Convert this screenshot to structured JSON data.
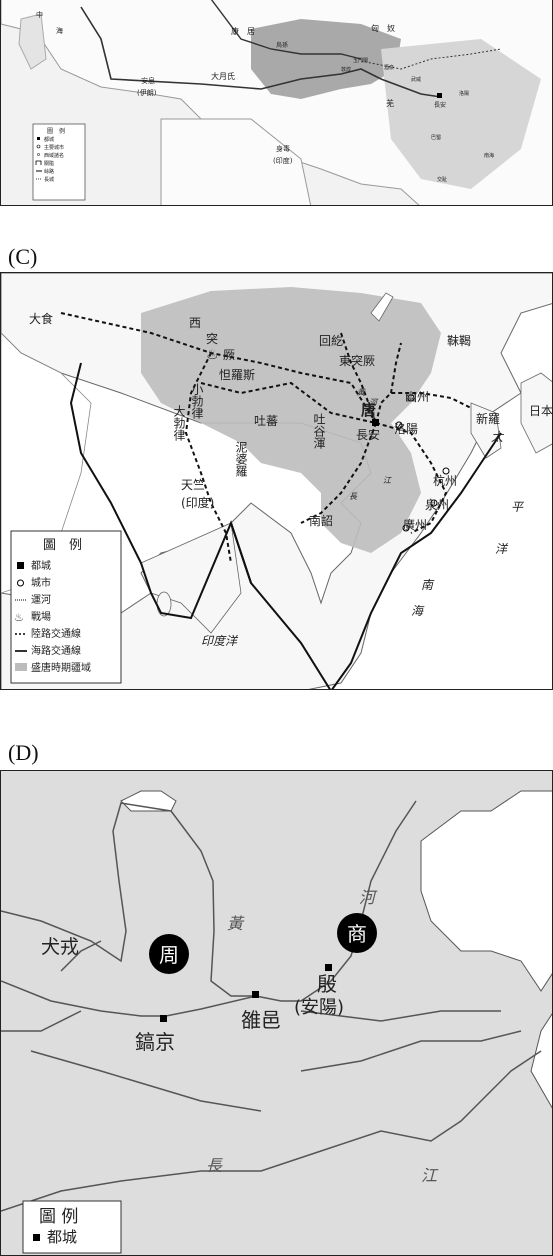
{
  "panels": {
    "b": {
      "labels": {
        "china_west": "中",
        "sea_west": "海",
        "kangju": "康　居",
        "xiongnu": "匈　奴",
        "wusun": "烏孫",
        "anxi": "安息",
        "anxi_sub": "(伊朗)",
        "dayuezhi": "大月氏",
        "shendu": "身毒",
        "shendu_sub": "(印度)",
        "qiang": "羌",
        "changan": "長安",
        "yumen": "玉門關",
        "dunhuang": "敦煌",
        "jiuquan": "酒泉",
        "wuwei": "武威",
        "luoyang": "洛陽",
        "bashu": "巴蜀",
        "nanhai": "南海",
        "jiaozhi": "交趾"
      },
      "legend": {
        "title": "圖　例",
        "items": [
          "都城",
          "主要城市",
          "西域諸名",
          "關隘",
          "絲路",
          "長城"
        ]
      }
    },
    "c": {
      "caption": "(C)",
      "labels": {
        "dashi": "大食",
        "tuju_west": "西",
        "tuju_east": "突",
        "tuju_jue": "厥",
        "talas": "怛羅斯",
        "huihe": "回紇",
        "dongtujue": "東突厥",
        "mohe": "靺鞨",
        "youzhou": "幽州",
        "xinluo": "新羅",
        "riben": "日本",
        "tang": "唐",
        "changan": "長安",
        "luoyang": "洛陽",
        "daboluo": "大勃律",
        "xiaoboluo": "小勃律",
        "tubo": "吐蕃",
        "tuguhun": "吐谷渾",
        "niboluo": "泥婆羅",
        "tianzhu": "天竺",
        "tianzhu_sub": "(印度)",
        "nanzhao": "南詔",
        "hangzhou": "杭州",
        "quanzhou": "泉州",
        "guangzhou": "廣州",
        "taiping": "太",
        "taiping2": "平",
        "yang": "洋",
        "nanhai1": "南",
        "nanhai2": "海",
        "yinduyang": "印度洋",
        "huang": "黃",
        "he": "河",
        "chang": "長",
        "jiang": "江"
      },
      "legend": {
        "title": "圖　例",
        "items": [
          "都城",
          "城市",
          "運河",
          "戰場",
          "陸路交通線",
          "海路交通線",
          "盛唐時期疆域"
        ]
      }
    },
    "d": {
      "caption": "(D)",
      "labels": {
        "huang": "黃",
        "he": "河",
        "quanrong": "犬戎",
        "zhou": "周",
        "shang": "商",
        "yin": "殷",
        "anyang": "(安陽)",
        "luoyi": "雒邑",
        "haojing": "鎬京",
        "chang": "長",
        "jiang": "江"
      },
      "legend": {
        "title": "圖 例",
        "items": [
          "都城"
        ]
      }
    }
  }
}
